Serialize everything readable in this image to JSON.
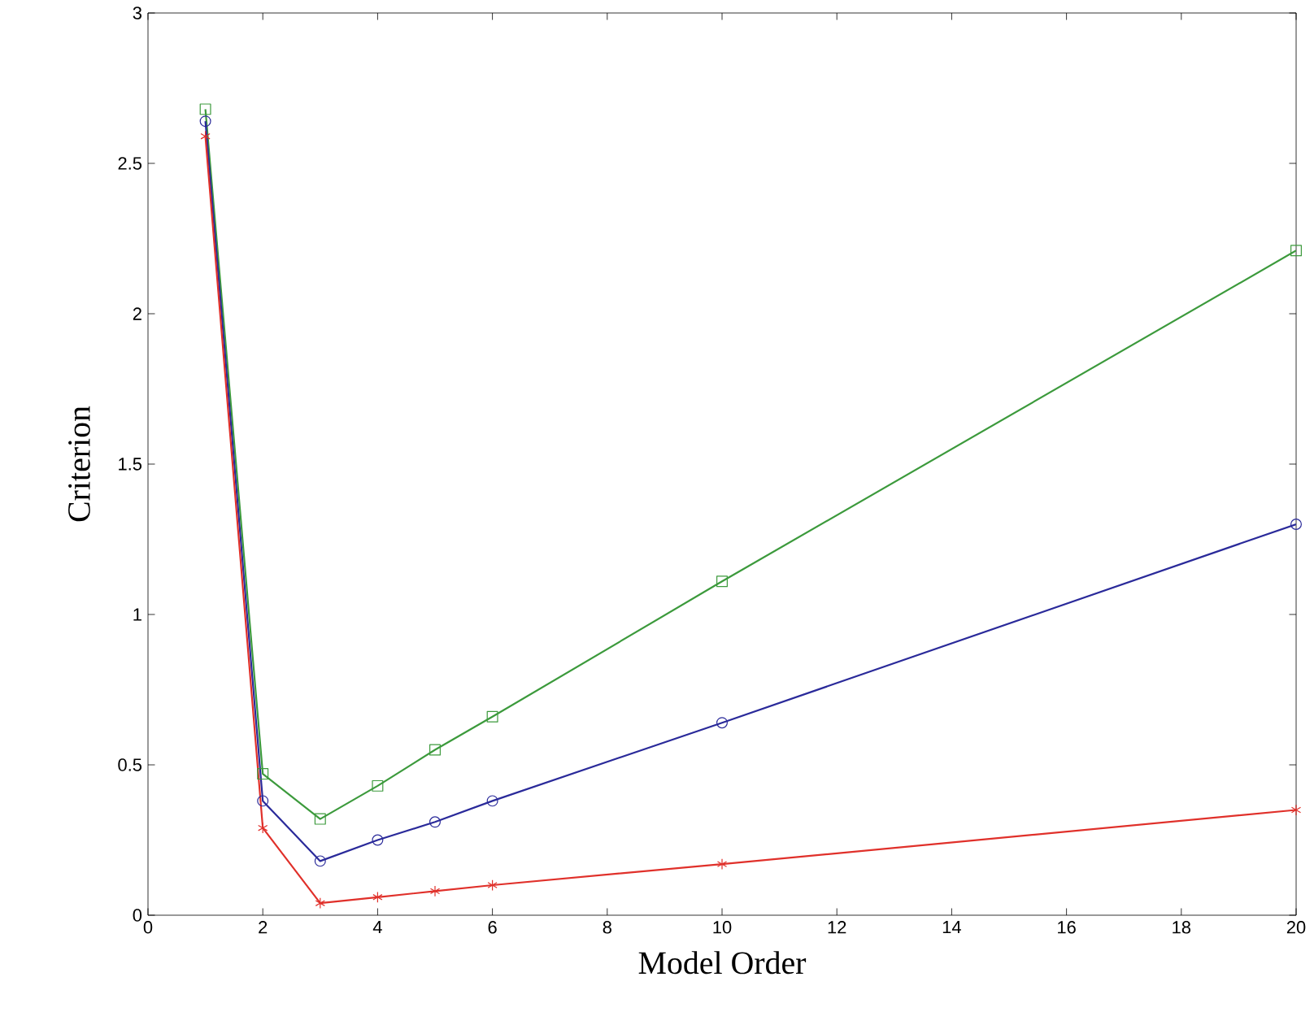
{
  "chart_data": {
    "type": "line",
    "xlabel": "Model Order",
    "ylabel": "Criterion",
    "x": [
      1,
      2,
      3,
      4,
      5,
      6,
      10,
      20
    ],
    "series": [
      {
        "color": "#3c9a3c",
        "marker": "square",
        "values": [
          2.68,
          0.47,
          0.32,
          0.43,
          0.55,
          0.66,
          1.11,
          2.21
        ]
      },
      {
        "color": "#2a2a9a",
        "marker": "circle",
        "values": [
          2.64,
          0.38,
          0.18,
          0.25,
          0.31,
          0.38,
          0.64,
          1.3
        ]
      },
      {
        "color": "#e0302a",
        "marker": "cross",
        "values": [
          2.59,
          0.29,
          0.04,
          0.06,
          0.08,
          0.1,
          0.17,
          0.35
        ]
      }
    ],
    "xlim": [
      0,
      20
    ],
    "xticks": [
      0,
      2,
      4,
      6,
      8,
      10,
      12,
      14,
      16,
      18,
      20
    ],
    "ylim": [
      0,
      3
    ],
    "yticks": [
      0,
      0.5,
      1,
      1.5,
      2,
      2.5,
      3
    ],
    "grid": false,
    "line_style": "solid"
  }
}
